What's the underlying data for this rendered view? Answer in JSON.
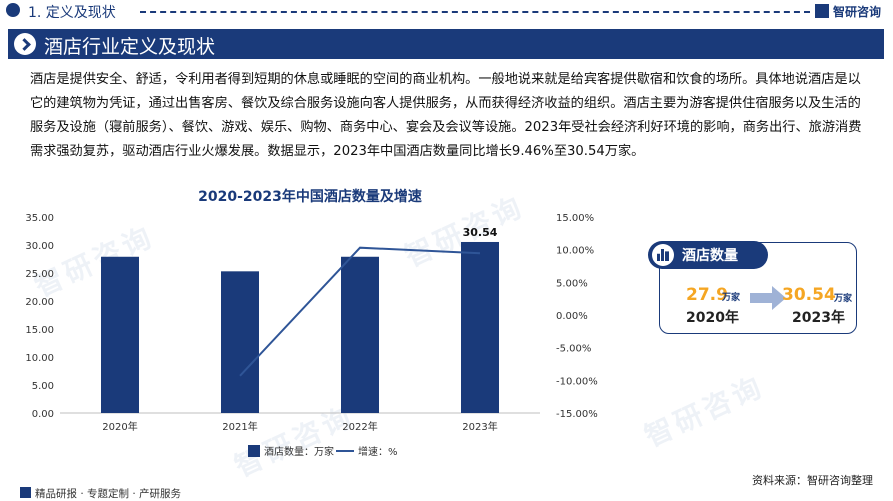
{
  "header": {
    "section_title": "1. 定义及现状",
    "brand": "智研咨询"
  },
  "banner": {
    "title": "酒店行业定义及现状"
  },
  "body_text": "酒店是提供安全、舒适，令利用者得到短期的休息或睡眠的空间的商业机构。一般地说来就是给宾客提供歇宿和饮食的场所。具体地说酒店是以它的建筑物为凭证，通过出售客房、餐饮及综合服务设施向客人提供服务，从而获得经济收益的组织。酒店主要为游客提供住宿服务以及生活的服务及设施（寝前服务）、餐饮、游戏、娱乐、购物、商务中心、宴会及会议等设施。2023年受社会经济利好环境的影响，商务出行、旅游消费需求强劲复苏，驱动酒店行业火爆发展。数据显示，2023年中国酒店数量同比增长9.46%至30.54万家。",
  "chart_data": {
    "type": "bar",
    "title": "2020-2023年中国酒店数量及增速",
    "categories": [
      "2020年",
      "2021年",
      "2022年",
      "2023年"
    ],
    "series": [
      {
        "name": "酒店数量：万家",
        "type": "bar",
        "axis": "left",
        "values": [
          27.9,
          25.3,
          27.9,
          30.54
        ]
      },
      {
        "name": "增速：%",
        "type": "line",
        "axis": "right",
        "values": [
          null,
          -9.3,
          10.3,
          9.46
        ]
      }
    ],
    "bar_data_labels": [
      null,
      null,
      null,
      "30.54"
    ],
    "ylim_left": [
      0,
      35
    ],
    "yticks_left": [
      "0.00",
      "5.00",
      "10.00",
      "15.00",
      "20.00",
      "25.00",
      "30.00",
      "35.00"
    ],
    "ylim_right": [
      -15,
      15
    ],
    "yticks_right": [
      "-15.00%",
      "-10.00%",
      "-5.00%",
      "0.00%",
      "5.00%",
      "10.00%",
      "15.00%"
    ],
    "grid": false,
    "legend_position": "bottom",
    "colors": {
      "bar": "#1a3a7a",
      "line": "#2f5597"
    }
  },
  "card": {
    "title": "酒店数量",
    "old_value": "27.9",
    "old_unit": "万家",
    "old_year": "2020年",
    "new_value": "30.54",
    "new_unit": "万家",
    "new_year": "2023年"
  },
  "footer": {
    "left": "精品研报 · 专题定制 · 产研服务",
    "source": "资料来源：智研咨询整理"
  },
  "watermark_text": "智研咨询",
  "colors": {
    "primary": "#1a3a7a",
    "accent": "#f5a623"
  }
}
